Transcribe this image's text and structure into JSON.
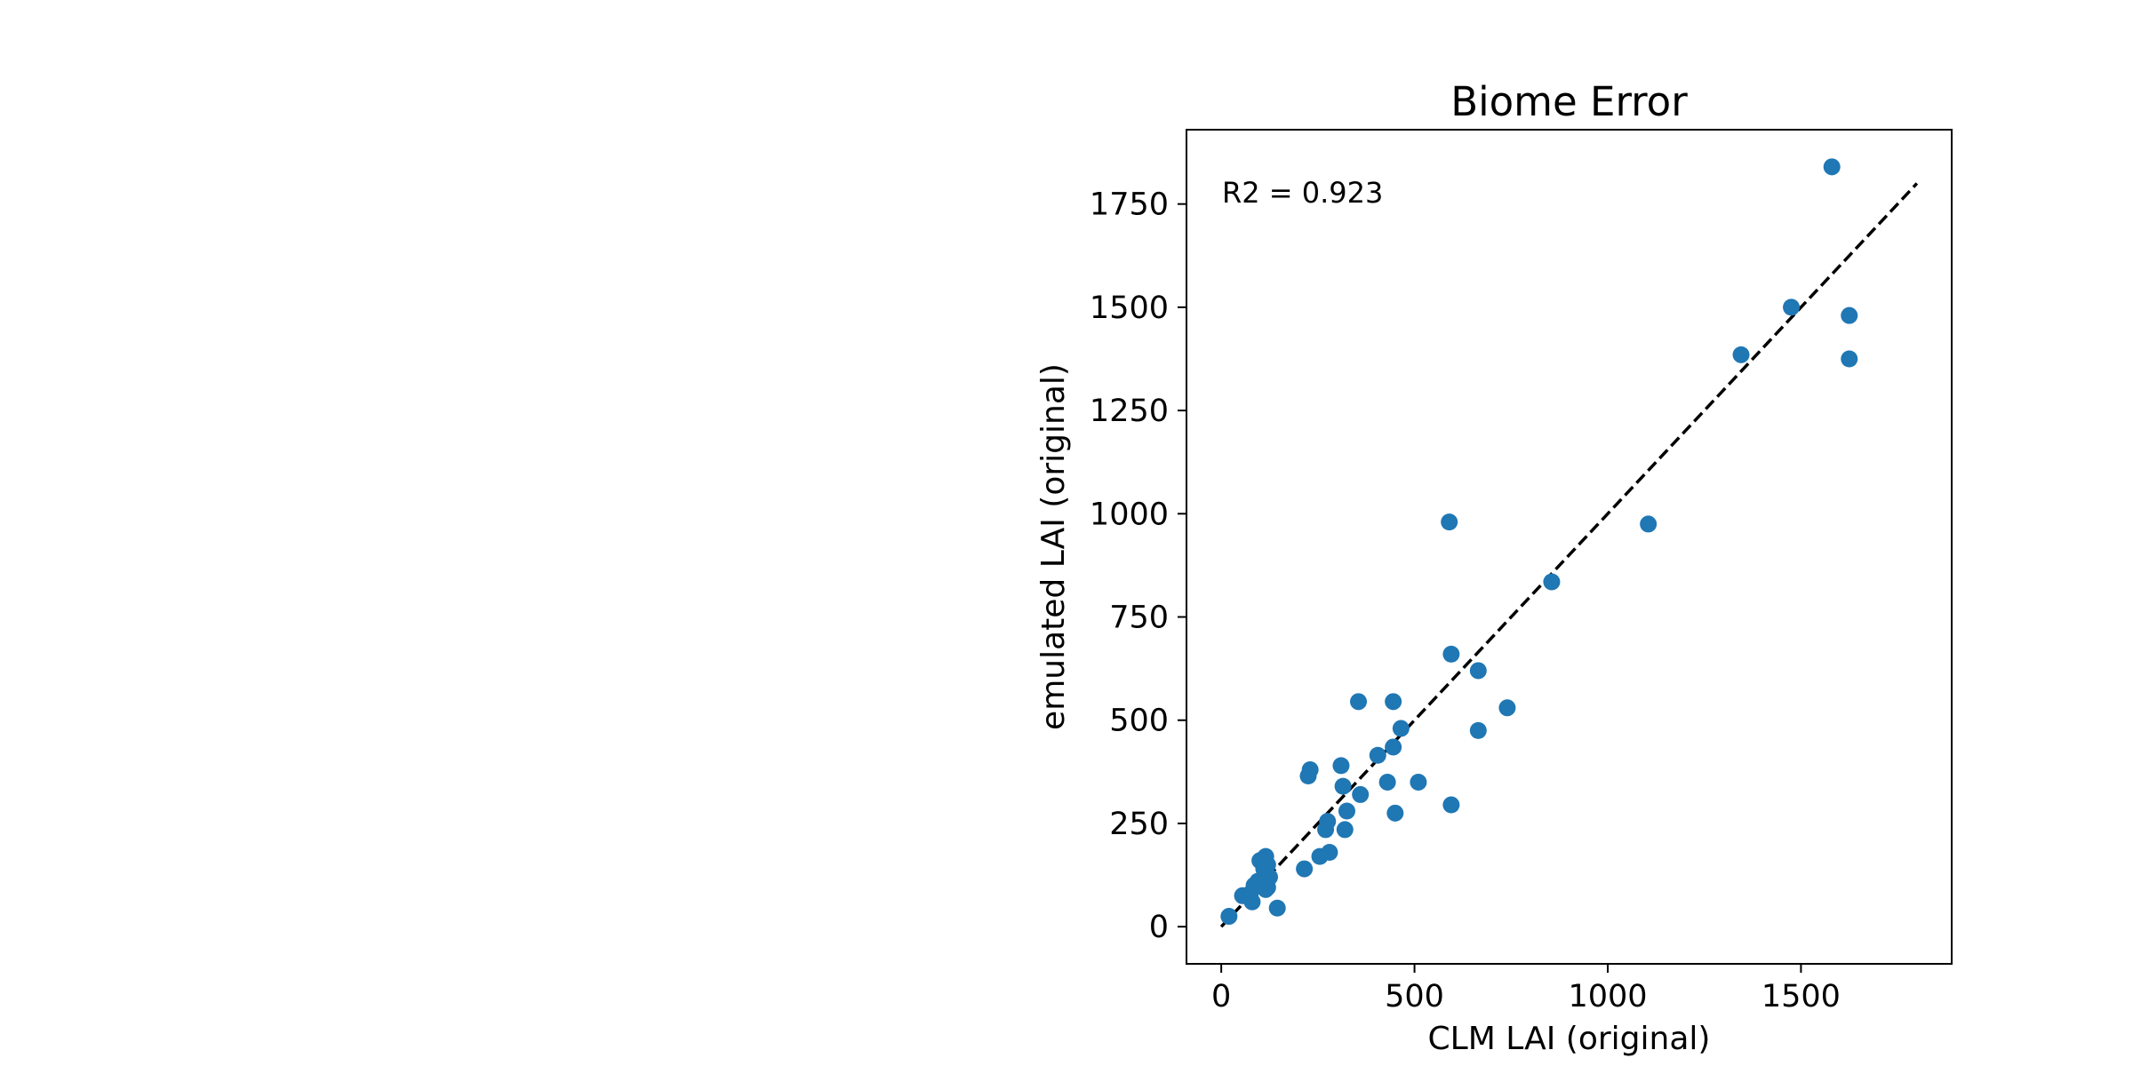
{
  "chart_data": {
    "type": "scatter",
    "title": "Biome Error",
    "xlabel": "CLM LAI (original)",
    "ylabel": "emulated LAI (original)",
    "annotation": "R2 = 0.923",
    "xlim": [
      -90,
      1890
    ],
    "ylim": [
      -90,
      1930
    ],
    "xticks": [
      0,
      500,
      1000,
      1500
    ],
    "yticks": [
      0,
      250,
      500,
      750,
      1000,
      1250,
      1500,
      1750
    ],
    "grid": false,
    "legend": "none",
    "reference_line": {
      "style": "dashed",
      "color": "#000000",
      "from": [
        0,
        0
      ],
      "to": [
        1800,
        1800
      ]
    },
    "series": [
      {
        "color": "#1f77b4",
        "x": [
          1580,
          1475,
          1625,
          1345,
          1625,
          590,
          1105,
          855,
          595,
          665,
          740,
          665,
          355,
          445,
          465,
          445,
          405,
          230,
          225,
          310,
          315,
          510,
          430,
          360,
          325,
          595,
          450,
          275,
          320,
          270,
          280,
          255,
          215,
          145,
          115,
          100,
          120,
          110,
          125,
          95,
          120,
          85,
          115,
          80,
          55,
          75,
          20
        ],
        "y": [
          1840,
          1500,
          1480,
          1385,
          1375,
          980,
          975,
          835,
          660,
          620,
          530,
          475,
          545,
          545,
          480,
          435,
          415,
          380,
          365,
          390,
          340,
          350,
          350,
          320,
          280,
          295,
          275,
          255,
          235,
          235,
          180,
          170,
          140,
          45,
          170,
          160,
          150,
          140,
          120,
          110,
          95,
          100,
          90,
          60,
          75,
          80,
          25
        ]
      }
    ]
  }
}
